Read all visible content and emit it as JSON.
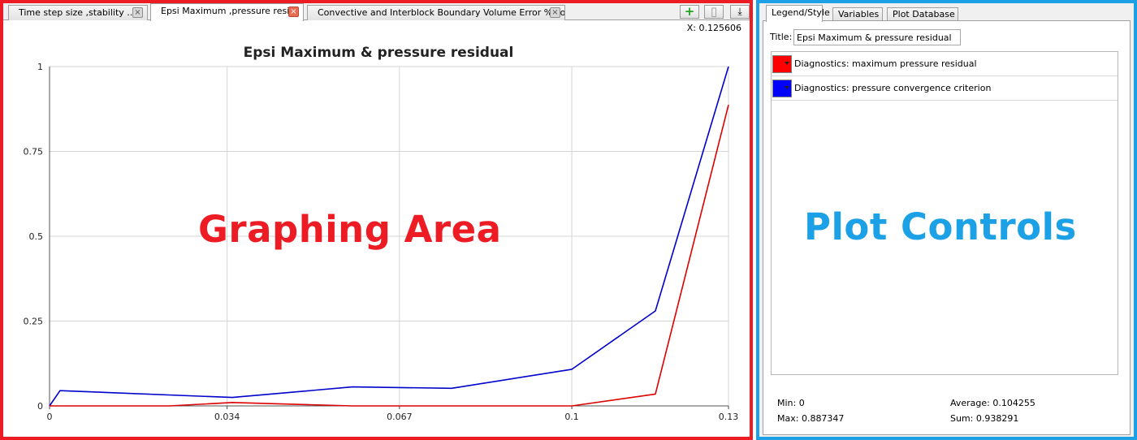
{
  "tabs": [
    {
      "label": "Time step size ,stability ..."
    },
    {
      "label": "Epsi Maximum ,pressure resi..."
    },
    {
      "label": "Convective and Interblock Boundary Volume Error  % Lost"
    }
  ],
  "toolbar": {
    "add_icon": "+",
    "copy_icon": "▯",
    "export_icon": "⤓"
  },
  "coordinate_readout": "X: 0.125606",
  "chart_data": {
    "type": "line",
    "title": "Epsi Maximum & pressure residual",
    "xlabel": "",
    "ylabel": "",
    "xlim": [
      0,
      0.13
    ],
    "ylim": [
      0,
      1
    ],
    "x_ticks": [
      0,
      0.034,
      0.067,
      0.1,
      0.13
    ],
    "x_tick_labels": [
      "0",
      "0.034",
      "0.067",
      "0.1",
      "0.13"
    ],
    "y_ticks": [
      0,
      0.25,
      0.5,
      0.75,
      1
    ],
    "y_tick_labels": [
      "0",
      "0.25",
      "0.5",
      "0.75",
      "1"
    ],
    "grid": true,
    "series": [
      {
        "name": "Diagnostics: pressure convergence criterion",
        "color": "#0000cc",
        "x": [
          0,
          0.002,
          0.035,
          0.058,
          0.077,
          0.1,
          0.116,
          0.13
        ],
        "y": [
          0,
          0.045,
          0.025,
          0.056,
          0.052,
          0.108,
          0.28,
          1.0
        ]
      },
      {
        "name": "Diagnostics: maximum pressure residual",
        "color": "#dd0000",
        "x": [
          0,
          0.002,
          0.023,
          0.035,
          0.058,
          0.1,
          0.116,
          0.13
        ],
        "y": [
          0,
          0.0,
          0.0,
          0.01,
          0.0,
          0.0,
          0.035,
          0.887
        ]
      }
    ]
  },
  "overlays": {
    "left": "Graphing Area",
    "right": "Plot Controls"
  },
  "plot_controls": {
    "tabs": [
      {
        "label": "Legend/Style"
      },
      {
        "label": "Variables"
      },
      {
        "label": "Plot Database"
      }
    ],
    "title_label": "Title:",
    "title_value": "Epsi Maximum & pressure residual",
    "legend": [
      {
        "label": "Diagnostics: maximum pressure residual",
        "color": "#ff0000"
      },
      {
        "label": "Diagnostics: pressure convergence criterion",
        "color": "#0000ff"
      }
    ],
    "stats": {
      "min": "Min: 0",
      "max": "Max: 0.887347",
      "average": "Average: 0.104255",
      "sum": "Sum: 0.938291"
    }
  }
}
